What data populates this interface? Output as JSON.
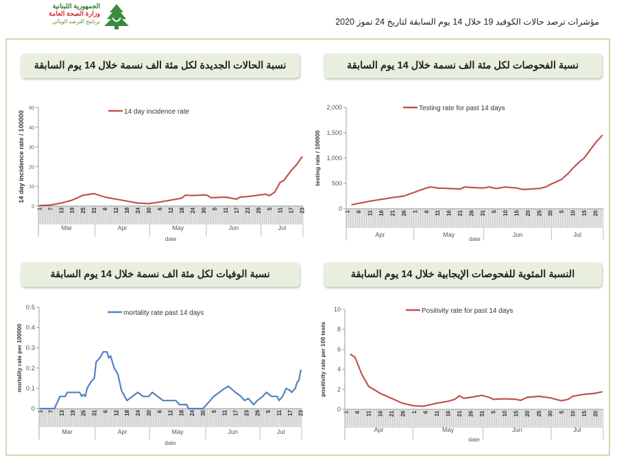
{
  "header": {
    "logo": {
      "line1": "الجمهورية اللبنانية",
      "line2": "وزارة الصحة العامة",
      "line3": "برنامج الترصد الوبائي"
    },
    "title": "مؤشرات ترصد حالات الكوفيد 19 خلال  14 يوم السابقة لتاريخ 24 تموز 2020"
  },
  "panels": [
    {
      "title": "نسبة الحالات الجديدة لكل مئة الف نسمة خلال 14 يوم السابقة"
    },
    {
      "title": "نسبة الفحوصات لكل مئة الف نسمة خلال 14 يوم السابقة"
    },
    {
      "title": "نسبة الوفيات لكل مئة الف نسمة خلال 14 يوم السابقة"
    },
    {
      "title": "النسبة المئوية للفحوصات الإيجابية خلال 14 يوم السابقة"
    }
  ],
  "chart_data": [
    {
      "type": "line",
      "legend": "14 day incidence rate",
      "ylabel": "14 day incidence rate / 100000",
      "xlabel": "date",
      "color": "#c0504d",
      "start": "2020-03-01",
      "ylim": [
        0,
        50
      ],
      "yticks": [
        "0",
        "10",
        "20",
        "30",
        "40",
        "50"
      ],
      "ytick_values": [
        0,
        10,
        20,
        30,
        40,
        50
      ],
      "x_tick_step_days": 6,
      "x_tick_labels": [
        "1",
        "7",
        "13",
        "19",
        "25",
        "31",
        "6",
        "12",
        "18",
        "24",
        "30",
        "6",
        "12",
        "18",
        "24",
        "30",
        "5",
        "11",
        "17",
        "23",
        "29",
        "5",
        "11",
        "17",
        "23"
      ],
      "months": [
        {
          "label": "Mar",
          "days": 31
        },
        {
          "label": "Apr",
          "days": 30
        },
        {
          "label": "May",
          "days": 31
        },
        {
          "label": "Jun",
          "days": 30
        },
        {
          "label": "Jul",
          "days": 23
        }
      ],
      "x": [
        "03-01",
        "03-07",
        "03-13",
        "03-19",
        "03-25",
        "03-31",
        "04-06",
        "04-12",
        "04-18",
        "04-24",
        "04-30",
        "05-06",
        "05-12",
        "05-18",
        "05-20",
        "05-24",
        "05-30",
        "06-01",
        "06-03",
        "06-11",
        "06-17",
        "06-19",
        "06-23",
        "06-29",
        "07-03",
        "07-05",
        "07-08",
        "07-11",
        "07-13",
        "07-17",
        "07-20",
        "07-23"
      ],
      "y": [
        0.2,
        0.5,
        1.5,
        3,
        5.5,
        6.3,
        4.5,
        3.5,
        2.5,
        1.5,
        1.2,
        2,
        3,
        4,
        5.5,
        5.3,
        5.6,
        5.5,
        4.2,
        4.5,
        3.5,
        4.5,
        4.8,
        5.5,
        6,
        5.2,
        7,
        12,
        13,
        18,
        21,
        25
      ]
    },
    {
      "type": "line",
      "legend": "Testing rate for past 14 days",
      "ylabel": "testing rate / 100000",
      "xlabel": "date",
      "color": "#c0504d",
      "start": "2020-04-01",
      "ylim": [
        0,
        2000
      ],
      "yticks": [
        "0",
        "500",
        "1,000",
        "1,500",
        "2,000"
      ],
      "ytick_values": [
        0,
        500,
        1000,
        1500,
        2000
      ],
      "x_tick_step_days": 5,
      "x_tick_labels": [
        "1",
        "6",
        "11",
        "16",
        "21",
        "26",
        "1",
        "6",
        "11",
        "16",
        "21",
        "26",
        "31",
        "5",
        "10",
        "15",
        "20",
        "25",
        "30",
        "5",
        "10",
        "15",
        "20"
      ],
      "months": [
        {
          "label": "Apr",
          "days": 30
        },
        {
          "label": "May",
          "days": 31
        },
        {
          "label": "Jun",
          "days": 30
        },
        {
          "label": "Jul",
          "days": 23
        }
      ],
      "x": [
        "04-03",
        "04-11",
        "04-21",
        "04-26",
        "05-01",
        "05-06",
        "05-08",
        "05-11",
        "05-16",
        "05-21",
        "05-23",
        "05-26",
        "05-31",
        "06-03",
        "06-06",
        "06-10",
        "06-15",
        "06-18",
        "06-25",
        "06-28",
        "06-30",
        "07-05",
        "07-08",
        "07-10",
        "07-13",
        "07-15",
        "07-18",
        "07-20",
        "07-23"
      ],
      "y": [
        80,
        150,
        220,
        250,
        330,
        410,
        430,
        410,
        400,
        390,
        430,
        420,
        410,
        430,
        400,
        430,
        410,
        380,
        400,
        430,
        480,
        580,
        700,
        800,
        930,
        1000,
        1180,
        1300,
        1450
      ]
    },
    {
      "type": "line",
      "legend": "mortality rate past 14 days",
      "ylabel": "mortality rate per 100000",
      "xlabel": "date",
      "color": "#4f81bd",
      "start": "2020-03-01",
      "ylim": [
        0,
        0.5
      ],
      "yticks": [
        "0",
        "0.1",
        "0.2",
        "0.3",
        "0.4",
        "0.5"
      ],
      "ytick_values": [
        0,
        0.1,
        0.2,
        0.3,
        0.4,
        0.5
      ],
      "x_tick_step_days": 6,
      "x_tick_labels": [
        "1",
        "7",
        "13",
        "19",
        "25",
        "31",
        "6",
        "12",
        "18",
        "24",
        "30",
        "6",
        "12",
        "18",
        "24",
        "30",
        "5",
        "11",
        "17",
        "23",
        "29",
        "5",
        "11",
        "17",
        "23"
      ],
      "months": [
        {
          "label": "Mar",
          "days": 31
        },
        {
          "label": "Apr",
          "days": 30
        },
        {
          "label": "May",
          "days": 31
        },
        {
          "label": "Jun",
          "days": 30
        },
        {
          "label": "Jul",
          "days": 23
        }
      ],
      "x": [
        "03-01",
        "03-09",
        "03-12",
        "03-15",
        "03-16",
        "03-23",
        "03-24",
        "03-25",
        "03-26",
        "03-27",
        "03-29",
        "03-31",
        "04-01",
        "04-03",
        "04-05",
        "04-07",
        "04-08",
        "04-09",
        "04-11",
        "04-13",
        "04-15",
        "04-18",
        "04-21",
        "04-24",
        "04-27",
        "04-30",
        "05-02",
        "05-05",
        "05-08",
        "05-15",
        "05-17",
        "05-21",
        "05-22",
        "05-30",
        "06-01",
        "06-05",
        "06-08",
        "06-11",
        "06-13",
        "06-17",
        "06-20",
        "06-22",
        "06-24",
        "06-27",
        "06-29",
        "07-02",
        "07-04",
        "07-07",
        "07-10",
        "07-11",
        "07-13",
        "07-15",
        "07-17",
        "07-18",
        "07-20",
        "07-21",
        "07-22",
        "07-23"
      ],
      "y": [
        0,
        0,
        0.06,
        0.06,
        0.08,
        0.08,
        0.06,
        0.07,
        0.06,
        0.1,
        0.13,
        0.15,
        0.23,
        0.25,
        0.28,
        0.28,
        0.25,
        0.26,
        0.2,
        0.17,
        0.09,
        0.04,
        0.06,
        0.08,
        0.06,
        0.06,
        0.08,
        0.06,
        0.04,
        0.04,
        0.02,
        0.02,
        0,
        0,
        0.02,
        0.06,
        0.08,
        0.1,
        0.11,
        0.08,
        0.06,
        0.04,
        0.05,
        0.02,
        0.04,
        0.06,
        0.08,
        0.06,
        0.06,
        0.04,
        0.06,
        0.1,
        0.09,
        0.08,
        0.1,
        0.13,
        0.14,
        0.19
      ]
    },
    {
      "type": "line",
      "legend": "Positivity rate for past 14 days",
      "ylabel": "positivity rate per 100 tests",
      "xlabel": "date",
      "color": "#c0504d",
      "start": "2020-04-01",
      "ylim": [
        0,
        10
      ],
      "yticks": [
        "0",
        "2",
        "4",
        "6",
        "8",
        "10"
      ],
      "ytick_values": [
        0,
        2,
        4,
        6,
        8,
        10
      ],
      "x_tick_step_days": 5,
      "x_tick_labels": [
        "1",
        "6",
        "11",
        "16",
        "21",
        "26",
        "1",
        "6",
        "11",
        "16",
        "21",
        "26",
        "31",
        "5",
        "10",
        "15",
        "20",
        "25",
        "30",
        "5",
        "10",
        "15",
        "20"
      ],
      "months": [
        {
          "label": "Apr",
          "days": 30
        },
        {
          "label": "May",
          "days": 31
        },
        {
          "label": "Jun",
          "days": 30
        },
        {
          "label": "Jul",
          "days": 23
        }
      ],
      "x": [
        "04-03",
        "04-05",
        "04-08",
        "04-11",
        "04-16",
        "04-21",
        "04-26",
        "05-01",
        "05-05",
        "05-11",
        "05-16",
        "05-19",
        "05-21",
        "05-23",
        "05-26",
        "05-31",
        "06-03",
        "06-05",
        "06-10",
        "06-15",
        "06-17",
        "06-20",
        "06-25",
        "06-30",
        "07-05",
        "07-08",
        "07-10",
        "07-15",
        "07-20",
        "07-23"
      ],
      "y": [
        5.5,
        5.2,
        3.5,
        2.3,
        1.6,
        1.1,
        0.6,
        0.35,
        0.3,
        0.6,
        0.8,
        1.0,
        1.35,
        1.1,
        1.2,
        1.4,
        1.2,
        1.0,
        1.05,
        1.0,
        0.9,
        1.2,
        1.3,
        1.15,
        0.85,
        1.0,
        1.3,
        1.5,
        1.6,
        1.75
      ]
    }
  ]
}
